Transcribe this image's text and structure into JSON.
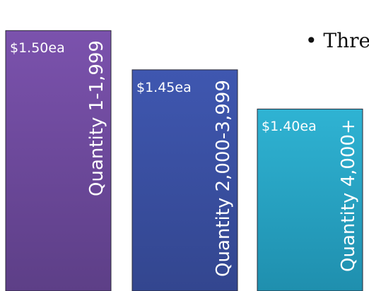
{
  "bullet_text": "• Thre",
  "chart_data": {
    "type": "bar",
    "categories": [
      "Quantity 1-1,999",
      "Quantity 2,000-3,999",
      "Quantity 4,000+"
    ],
    "values": [
      1.5,
      1.45,
      1.4
    ],
    "value_labels": [
      "$1.50ea",
      "$1.45ea",
      "$1.40ea"
    ],
    "ylim": [
      1.168,
      1.53
    ],
    "grid": false,
    "legend": "none",
    "colors": {
      "gradient_top": [
        "#7b52ad",
        "#3f57b0",
        "#2fb3d3"
      ],
      "gradient_bottom": [
        "#5d3f87",
        "#33468f",
        "#1f8fae"
      ]
    }
  }
}
